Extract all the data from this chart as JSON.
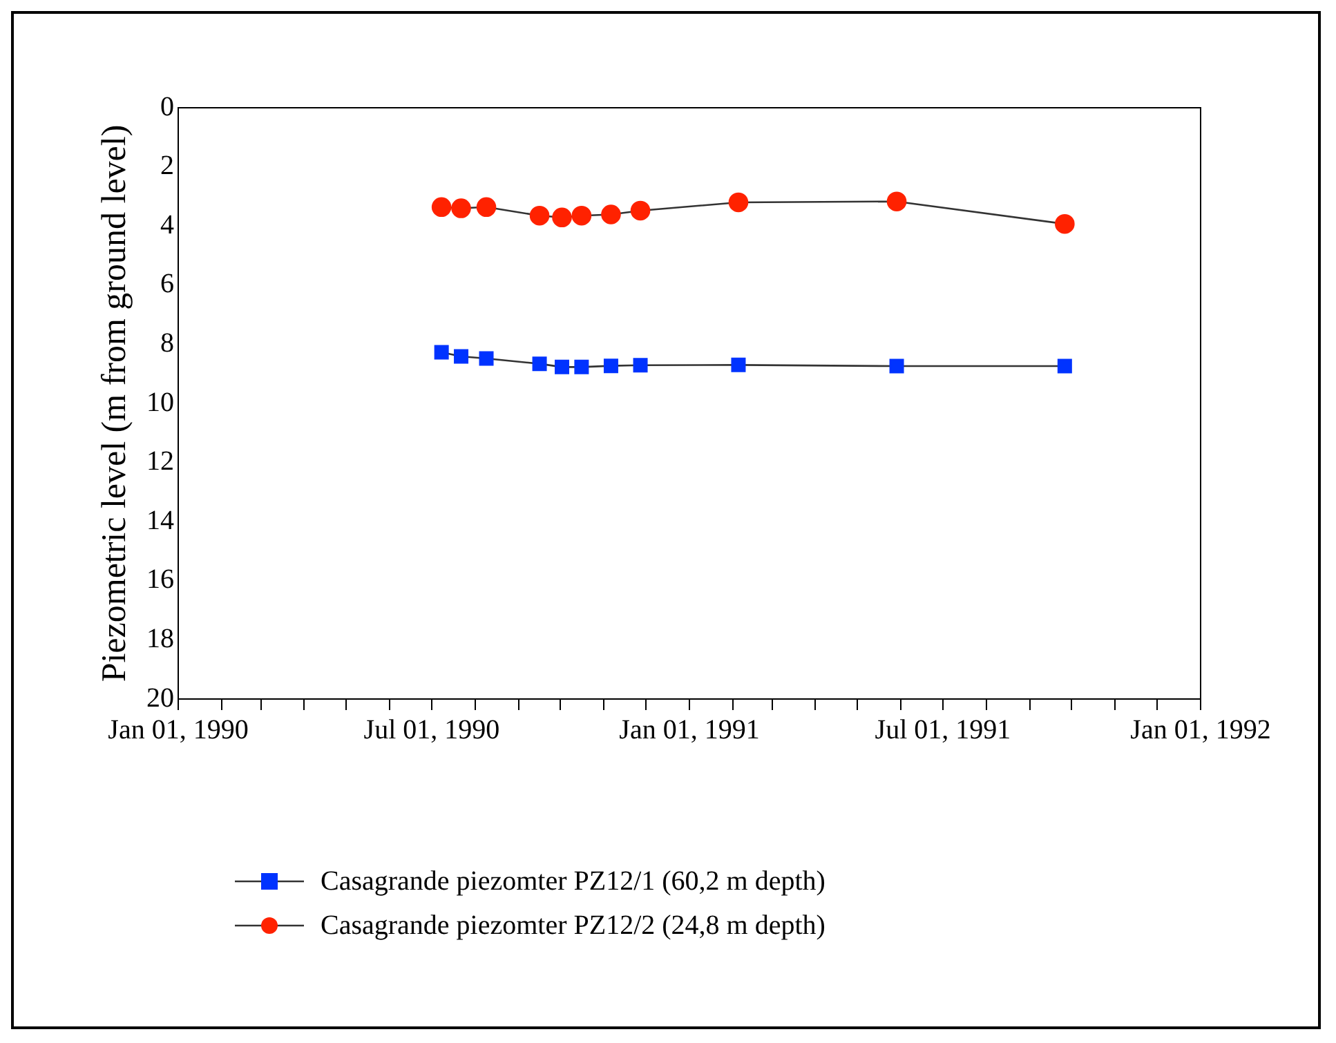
{
  "chart_data": {
    "type": "line",
    "ylabel": "Piezometric level (m from ground level)",
    "xlim": [
      "1990-01-01",
      "1992-01-01"
    ],
    "xticks": [
      {
        "value": "1990-01-01",
        "label": "Jan 01, 1990"
      },
      {
        "value": "1990-02-01",
        "label": null
      },
      {
        "value": "1990-03-01",
        "label": null
      },
      {
        "value": "1990-04-01",
        "label": null
      },
      {
        "value": "1990-05-01",
        "label": null
      },
      {
        "value": "1990-06-01",
        "label": null
      },
      {
        "value": "1990-07-01",
        "label": "Jul 01, 1990"
      },
      {
        "value": "1990-08-01",
        "label": null
      },
      {
        "value": "1990-09-01",
        "label": null
      },
      {
        "value": "1990-10-01",
        "label": null
      },
      {
        "value": "1990-11-01",
        "label": null
      },
      {
        "value": "1990-12-01",
        "label": null
      },
      {
        "value": "1991-01-01",
        "label": "Jan 01, 1991"
      },
      {
        "value": "1991-02-01",
        "label": null
      },
      {
        "value": "1991-03-01",
        "label": null
      },
      {
        "value": "1991-04-01",
        "label": null
      },
      {
        "value": "1991-05-01",
        "label": null
      },
      {
        "value": "1991-06-01",
        "label": null
      },
      {
        "value": "1991-07-01",
        "label": "Jul 01, 1991"
      },
      {
        "value": "1991-08-01",
        "label": null
      },
      {
        "value": "1991-09-01",
        "label": null
      },
      {
        "value": "1991-10-01",
        "label": null
      },
      {
        "value": "1991-11-01",
        "label": null
      },
      {
        "value": "1991-12-01",
        "label": null
      },
      {
        "value": "1992-01-01",
        "label": "Jan 01, 1992"
      }
    ],
    "ylim": [
      20,
      0
    ],
    "yticks": [
      0,
      2,
      4,
      6,
      8,
      10,
      12,
      14,
      16,
      18,
      20
    ],
    "x": [
      "1990-07-08",
      "1990-07-22",
      "1990-08-09",
      "1990-09-16",
      "1990-10-02",
      "1990-10-16",
      "1990-11-06",
      "1990-11-27",
      "1991-02-05",
      "1991-05-29",
      "1991-09-26"
    ],
    "series": [
      {
        "name": "Casagrande piezomter PZ12/1 (60,2 m depth)",
        "color": "#0033ff",
        "marker": "square",
        "values": [
          8.27,
          8.41,
          8.48,
          8.66,
          8.77,
          8.77,
          8.73,
          8.71,
          8.7,
          8.74,
          8.74
        ]
      },
      {
        "name": "Casagrande piezomter PZ12/2 (24,8 m depth)",
        "color": "#ff2200",
        "marker": "circle",
        "values": [
          3.36,
          3.4,
          3.36,
          3.65,
          3.71,
          3.65,
          3.61,
          3.48,
          3.2,
          3.17,
          3.93
        ]
      }
    ],
    "grid": false,
    "legend": "bottom left",
    "line_style": "solid"
  }
}
